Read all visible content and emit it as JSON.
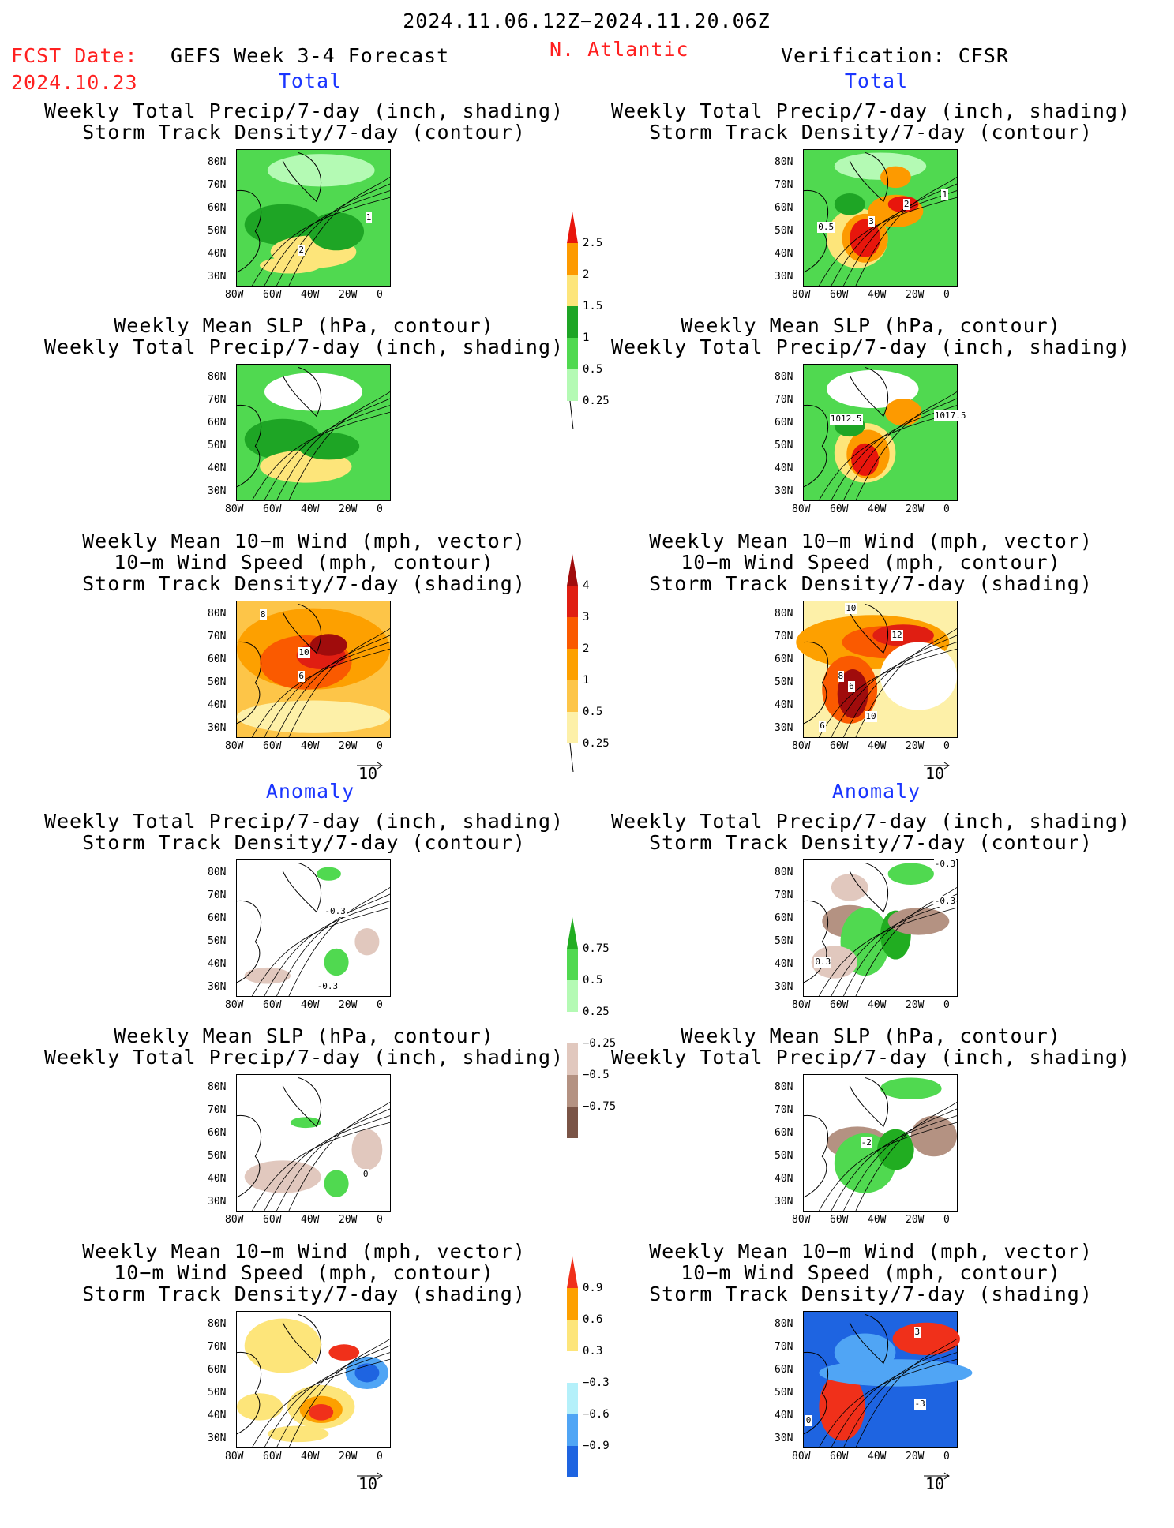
{
  "header": {
    "date_range": "2024.11.06.12Z−2024.11.20.06Z",
    "fcst_label": "FCST Date:",
    "fcst_date": "2024.10.23",
    "forecast_name": "GEFS Week 3-4 Forecast",
    "region": "N. Atlantic",
    "verification": "Verification: CFSR"
  },
  "sections": {
    "total": "Total",
    "anomaly": "Anomaly"
  },
  "panel_titles": {
    "precip_storm": [
      "Weekly Total Precip/7-day (inch, shading)",
      "Storm Track Density/7-day (contour)"
    ],
    "slp_precip": [
      "Weekly Mean SLP (hPa, contour)",
      "Weekly Total Precip/7-day (inch, shading)"
    ],
    "wind_storm": [
      "Weekly Mean 10−m Wind (mph, vector)",
      "10−m Wind Speed (mph, contour)",
      "Storm Track Density/7-day (shading)"
    ]
  },
  "axes": {
    "lat_labels": [
      "80N",
      "70N",
      "60N",
      "50N",
      "40N",
      "30N"
    ],
    "lon_labels": [
      "80W",
      "60W",
      "40W",
      "20W",
      "0"
    ]
  },
  "vector_ref": "10",
  "contour_labels": {
    "fc_precip": [
      "1",
      "2"
    ],
    "ver_precip": [
      "0.5",
      "3",
      "2",
      "1"
    ],
    "ver_slp": [
      "1012.5",
      "1017.5"
    ],
    "fc_wind": [
      "8",
      "10",
      "6"
    ],
    "ver_wind": [
      "10",
      "12",
      "8",
      "6",
      "10",
      "6"
    ],
    "fc_anom_precip": [
      "-0.3",
      "-0.3"
    ],
    "ver_anom_precip": [
      "-0.3",
      "-0.3",
      "0.3"
    ],
    "fc_anom_slp": [
      "0"
    ],
    "ver_anom_slp": [
      "-2"
    ],
    "ver_anom_wind": [
      "3",
      "-3",
      "0"
    ]
  },
  "colorbars": {
    "precip_total": {
      "labels": [
        "2.5",
        "2",
        "1.5",
        "1",
        "0.5",
        "0.25"
      ],
      "colors": [
        "#e8160c",
        "#fd9a00",
        "#fde57a",
        "#1ea525",
        "#50d950",
        "#b4fab4"
      ]
    },
    "storm_total": {
      "labels": [
        "4",
        "3",
        "2",
        "1",
        "0.5",
        "0.25"
      ],
      "colors": [
        "#a00c0c",
        "#e01e12",
        "#fa5a00",
        "#fda000",
        "#fdc548",
        "#fdf0a8"
      ]
    },
    "precip_anom": {
      "labels": [
        "0.75",
        "0.5",
        "0.25",
        "−0.25",
        "−0.5",
        "−0.75"
      ],
      "colors": [
        "#21ad21",
        "#50d950",
        "#b4fab4",
        "#ffffff",
        "#e1c8be",
        "#b49282",
        "#7a5446"
      ]
    },
    "storm_anom": {
      "labels": [
        "0.9",
        "0.6",
        "0.3",
        "−0.3",
        "−0.6",
        "−0.9"
      ],
      "colors": [
        "#f0301a",
        "#fda000",
        "#fde57a",
        "#ffffff",
        "#b4f0fa",
        "#50a5f5",
        "#1e64e1"
      ]
    }
  }
}
